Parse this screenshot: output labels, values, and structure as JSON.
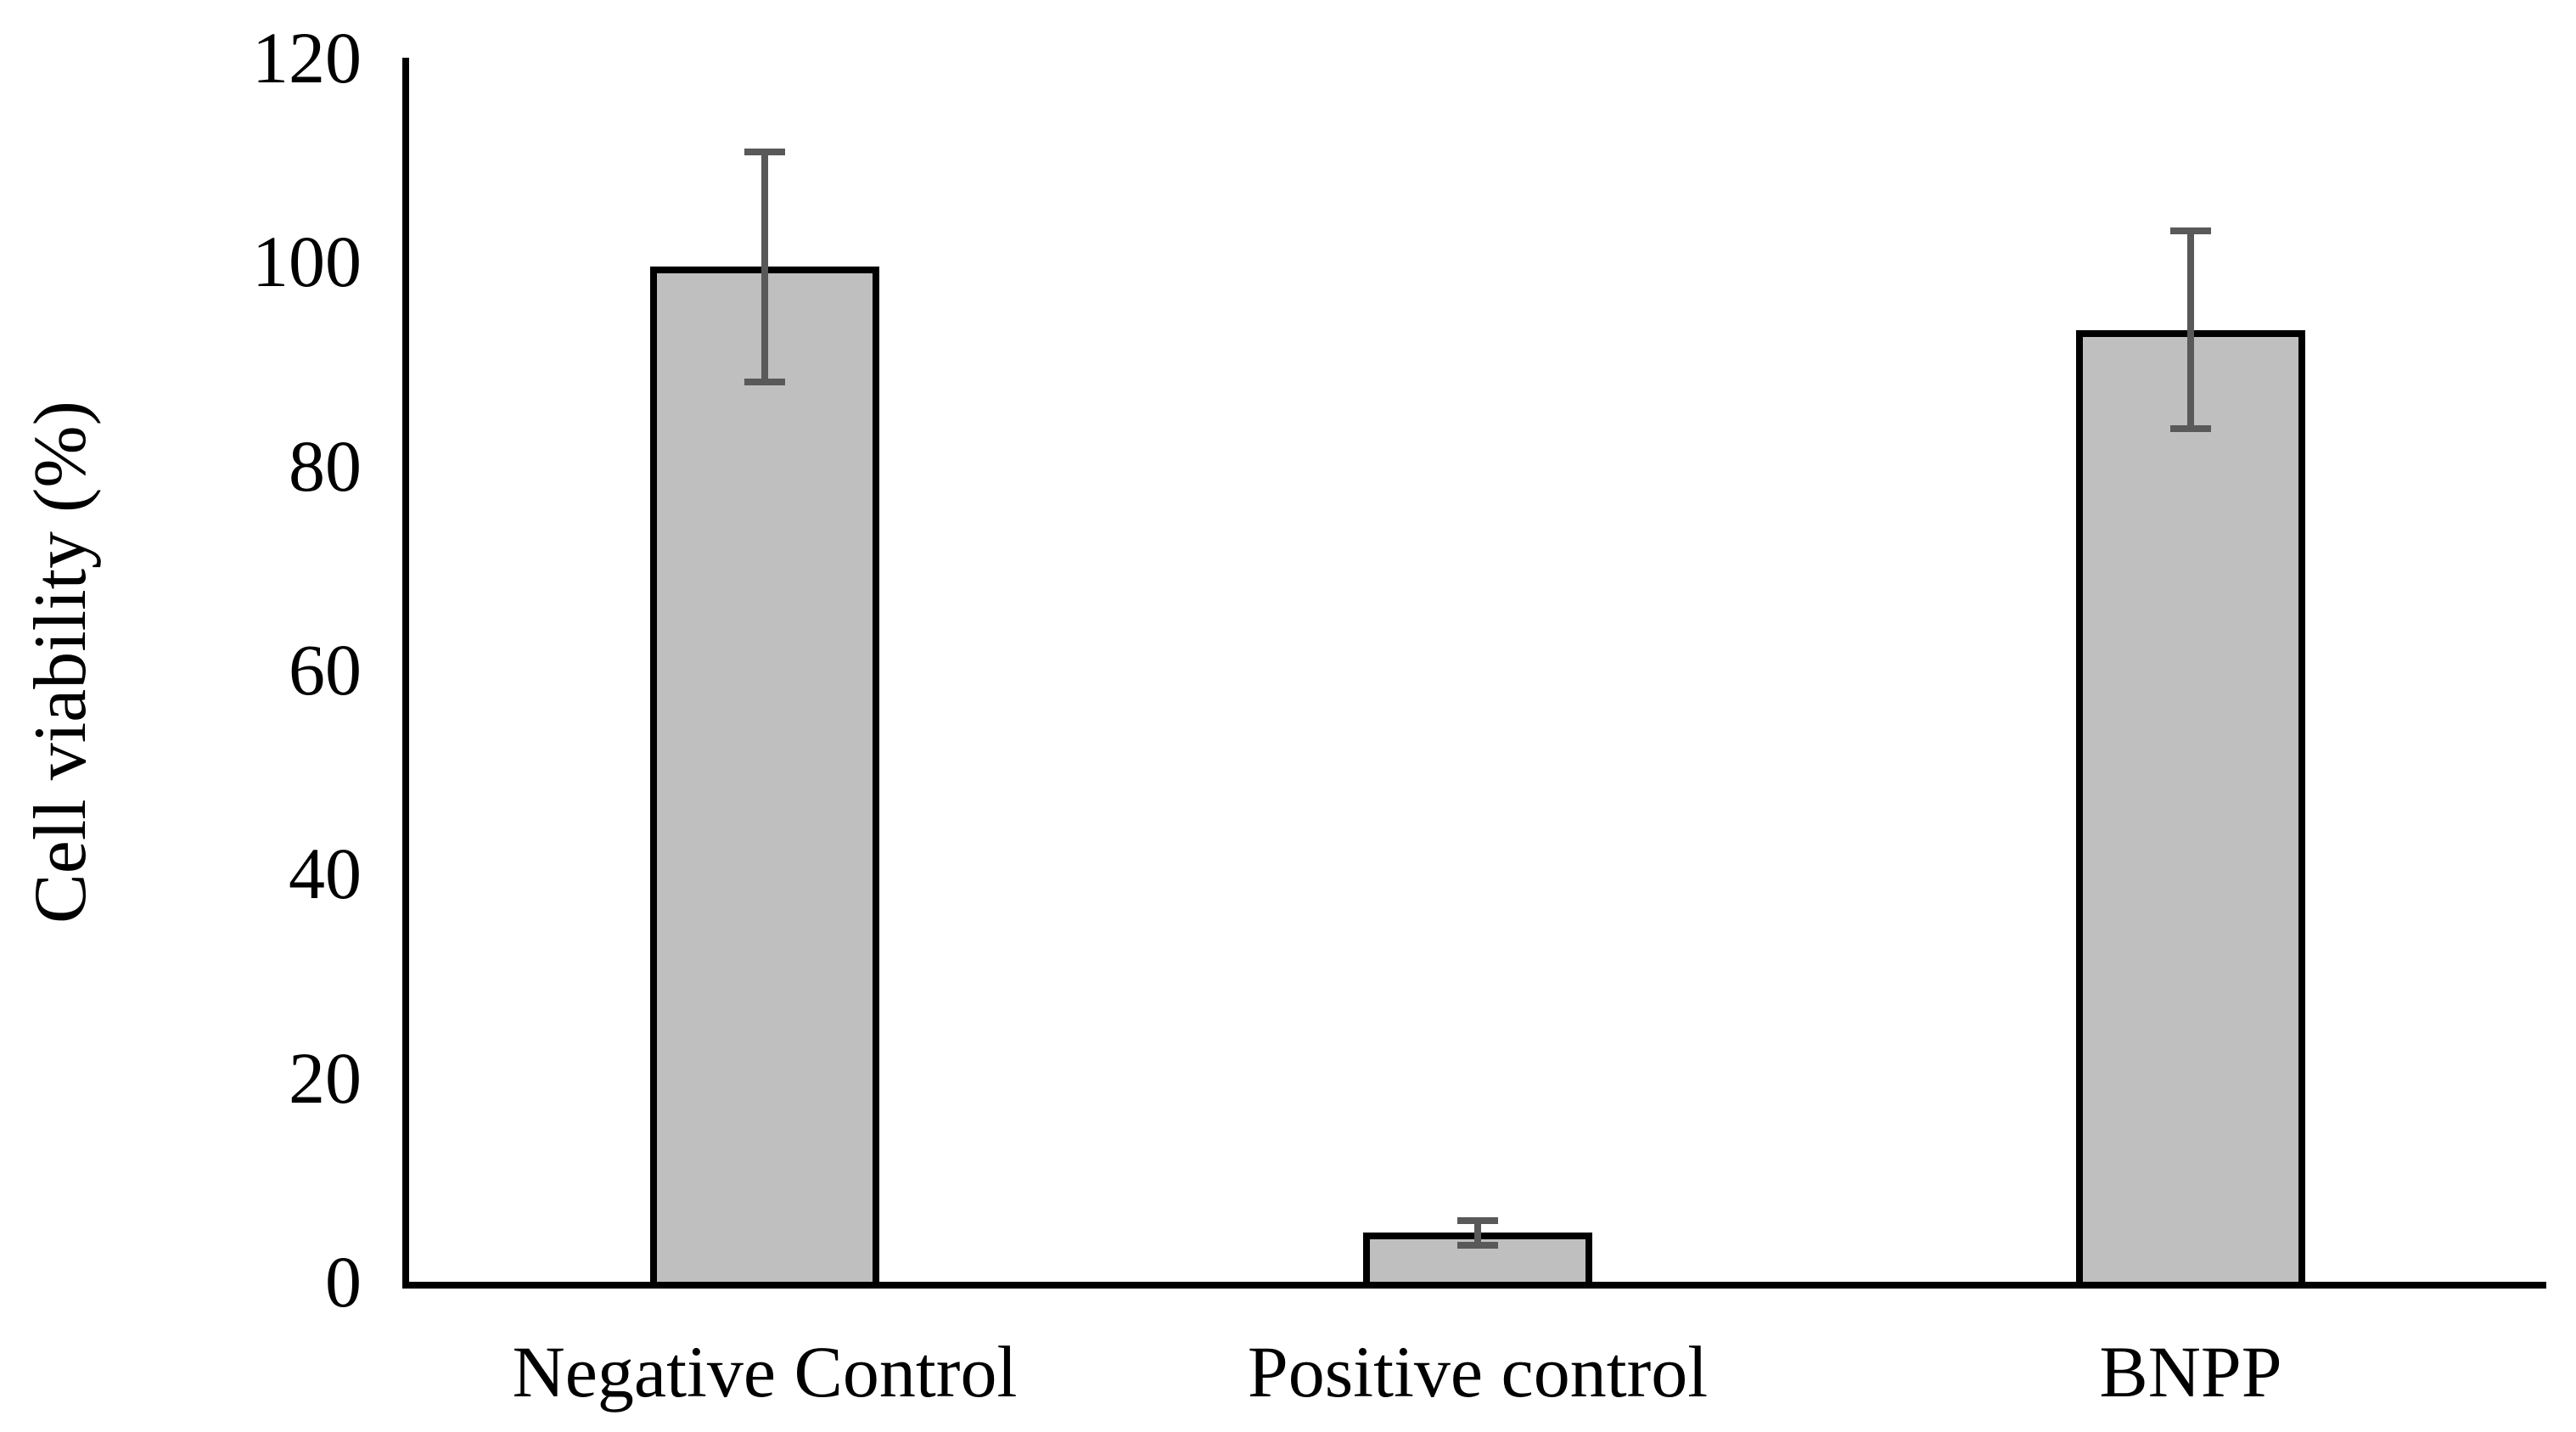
{
  "chart_data": {
    "type": "bar",
    "title": "",
    "categories": [
      "Negative Control",
      "Positive control",
      "BNPP"
    ],
    "values": [
      99.5,
      4.8,
      93.3
    ],
    "errors": [
      11.3,
      1.2,
      9.7
    ],
    "ylabel": "Cell viability (%)",
    "xlabel": "",
    "yticks": [
      0,
      20,
      40,
      60,
      80,
      100,
      120
    ],
    "ylim": [
      0,
      120
    ],
    "grid": false,
    "legend": false,
    "colors": {
      "bar_fill": "#bfbfbf",
      "bar_border": "#000000",
      "error_bar": "#595959",
      "axis": "#000000",
      "background": "#ffffff",
      "text": "#000000"
    }
  }
}
